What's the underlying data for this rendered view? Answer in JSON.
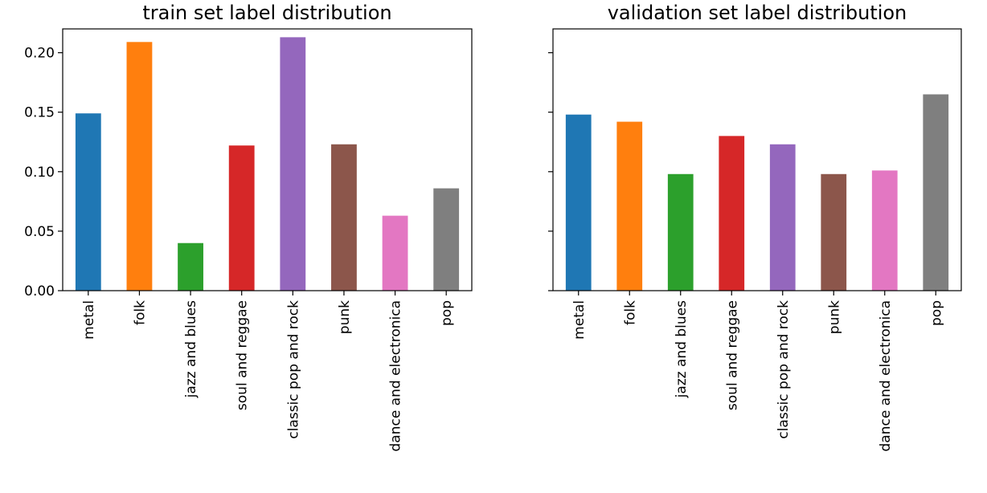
{
  "chart_data": [
    {
      "type": "bar",
      "title": "train set label distribution",
      "categories": [
        "metal",
        "folk",
        "jazz and blues",
        "soul and reggae",
        "classic pop and rock",
        "punk",
        "dance and electronica",
        "pop"
      ],
      "values": [
        0.149,
        0.209,
        0.04,
        0.122,
        0.213,
        0.123,
        0.063,
        0.086
      ],
      "colors": [
        "#1f77b4",
        "#ff7f0e",
        "#2ca02c",
        "#d62728",
        "#9467bd",
        "#8c564b",
        "#e377c2",
        "#7f7f7f"
      ],
      "ylim": [
        0,
        0.22
      ],
      "yticks": [
        0.0,
        0.05,
        0.1,
        0.15,
        0.2
      ],
      "ytick_labels": [
        "0.00",
        "0.05",
        "0.10",
        "0.15",
        "0.20"
      ],
      "xlabel": "",
      "ylabel": "",
      "grid": false,
      "legend": "none"
    },
    {
      "type": "bar",
      "title": "validation set label distribution",
      "categories": [
        "metal",
        "folk",
        "jazz and blues",
        "soul and reggae",
        "classic pop and rock",
        "punk",
        "dance and electronica",
        "pop"
      ],
      "values": [
        0.148,
        0.142,
        0.098,
        0.13,
        0.123,
        0.098,
        0.101,
        0.165
      ],
      "colors": [
        "#1f77b4",
        "#ff7f0e",
        "#2ca02c",
        "#d62728",
        "#9467bd",
        "#8c564b",
        "#e377c2",
        "#7f7f7f"
      ],
      "ylim": [
        0,
        0.22
      ],
      "yticks": [
        0.0,
        0.05,
        0.1,
        0.15,
        0.2
      ],
      "ytick_labels": [],
      "shared_y": true,
      "xlabel": "",
      "ylabel": "",
      "grid": false,
      "legend": "none"
    }
  ]
}
